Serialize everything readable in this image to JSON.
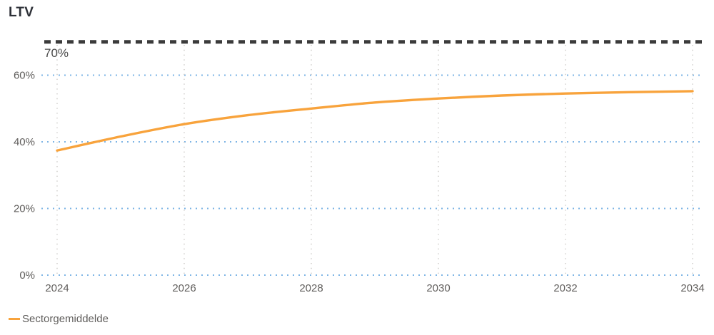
{
  "header": {
    "title": "LTV"
  },
  "legend": {
    "items": [
      {
        "label": "Sectorgemiddelde",
        "color": "#F8A33C"
      }
    ]
  },
  "chart_data": {
    "type": "line",
    "title": "LTV",
    "x": [
      2024,
      2025,
      2026,
      2027,
      2028,
      2029,
      2030,
      2031,
      2032,
      2033,
      2034
    ],
    "series": [
      {
        "name": "Sectorgemiddelde",
        "color": "#F8A33C",
        "values": [
          37.4,
          41.6,
          45.3,
          48.0,
          50.0,
          51.8,
          53.0,
          53.9,
          54.5,
          54.9,
          55.2
        ]
      }
    ],
    "reference_line": {
      "value": 70,
      "label": "70%",
      "color": "#3B3B3B",
      "style": "dashed"
    },
    "y_ticks": [
      {
        "value": 0,
        "label": "0%"
      },
      {
        "value": 20,
        "label": "20%"
      },
      {
        "value": 40,
        "label": "40%"
      },
      {
        "value": 60,
        "label": "60%"
      }
    ],
    "x_ticks": [
      {
        "value": 2024,
        "label": "2024"
      },
      {
        "value": 2026,
        "label": "2026"
      },
      {
        "value": 2028,
        "label": "2028"
      },
      {
        "value": 2030,
        "label": "2030"
      },
      {
        "value": 2032,
        "label": "2032"
      },
      {
        "value": 2034,
        "label": "2034"
      }
    ],
    "xlim": [
      2024,
      2034
    ],
    "ylim": [
      0,
      74
    ],
    "xlabel": "",
    "ylabel": "",
    "grid": {
      "horizontal_dot_color": "#7EB5E5",
      "vertical_dot_color": "#CCCAC8",
      "style": "dotted"
    },
    "axis_label_color": "#605e5c",
    "legend_position": "bottom-left"
  }
}
